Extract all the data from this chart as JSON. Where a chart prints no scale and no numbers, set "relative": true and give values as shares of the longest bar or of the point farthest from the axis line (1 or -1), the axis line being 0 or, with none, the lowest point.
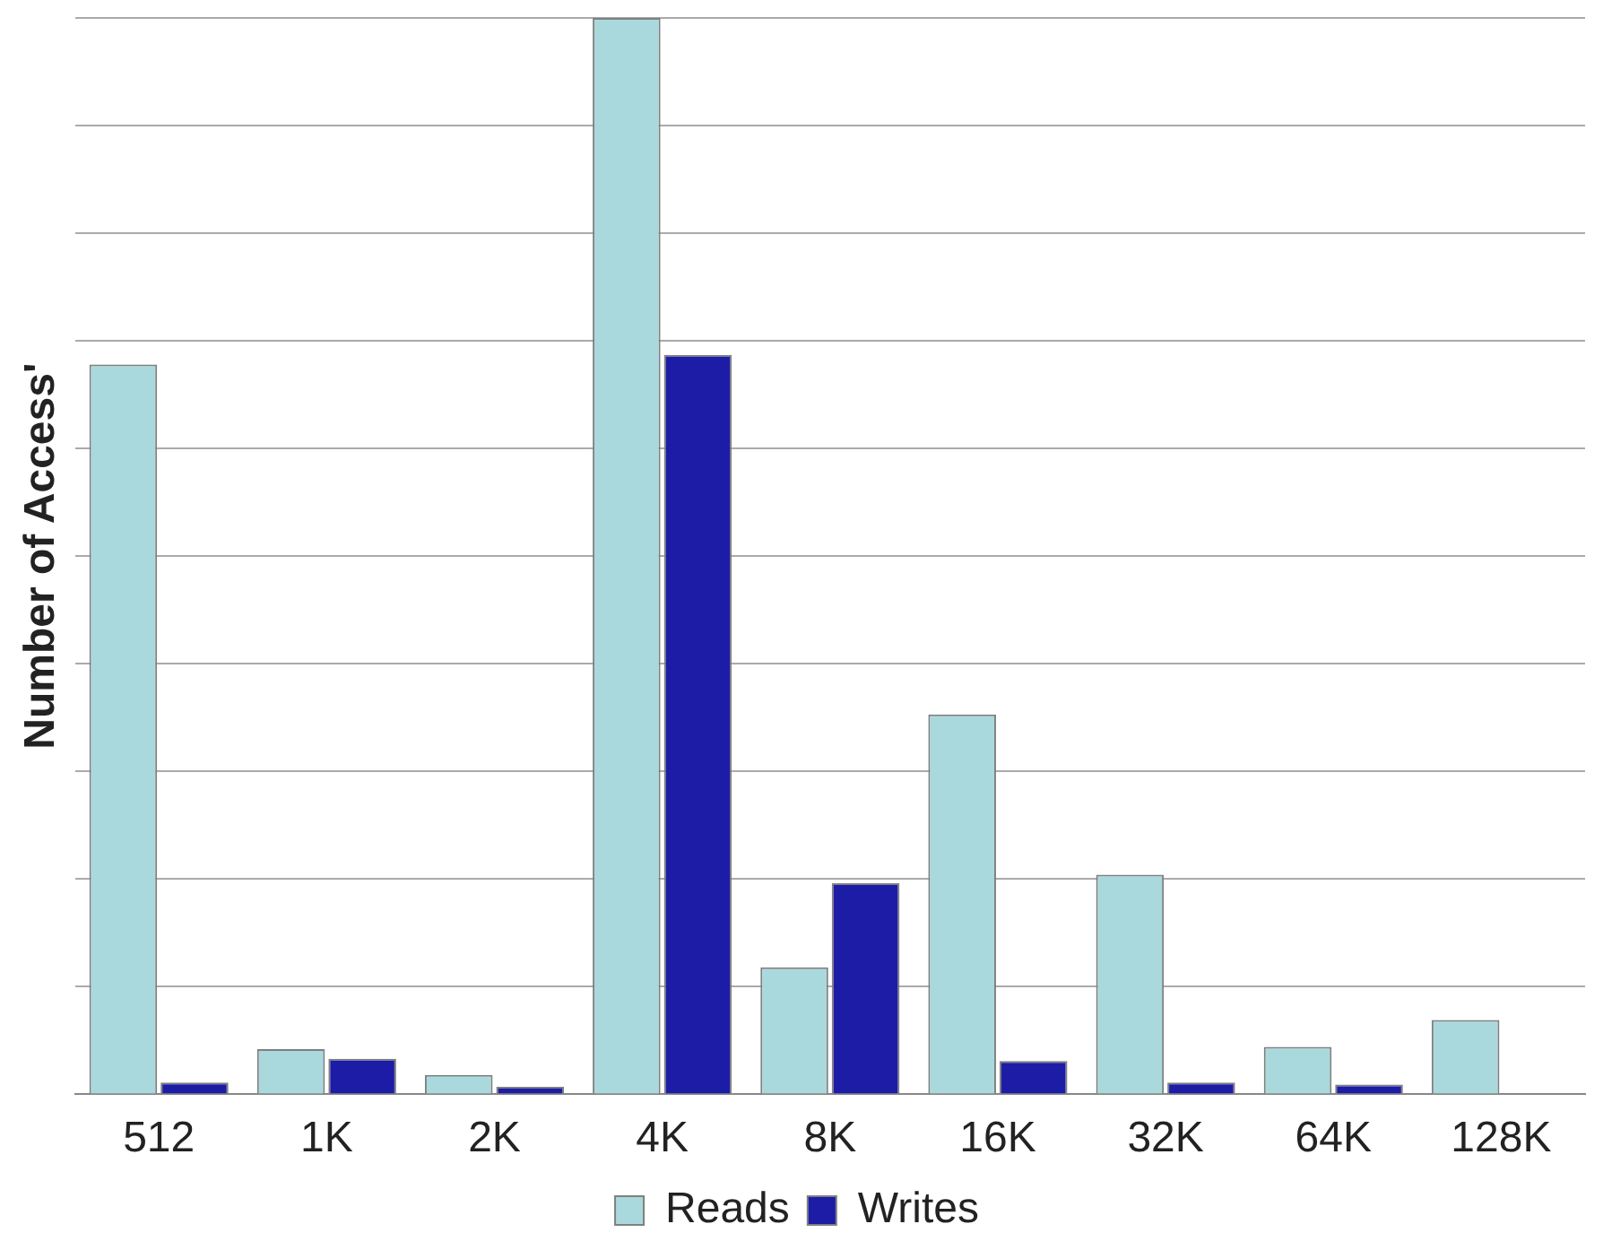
{
  "chart_data": {
    "type": "bar",
    "ylabel": "Number of Access'",
    "relative": true,
    "grid": "y",
    "legend": "bottom",
    "categories": [
      "512",
      "1K",
      "2K",
      "4K",
      "8K",
      "16K",
      "32K",
      "64K",
      "128K"
    ],
    "series": [
      {
        "name": "Reads",
        "color": "#a9d9dd",
        "values": [
          0.678,
          0.042,
          0.018,
          1,
          0.118,
          0.353,
          0.204,
          0.044,
          0.069
        ]
      },
      {
        "name": "Writes",
        "color": "#1c1ca6",
        "values": [
          0.011,
          0.033,
          0.007,
          0.687,
          0.196,
          0.031,
          0.011,
          0.009,
          0
        ]
      }
    ]
  }
}
